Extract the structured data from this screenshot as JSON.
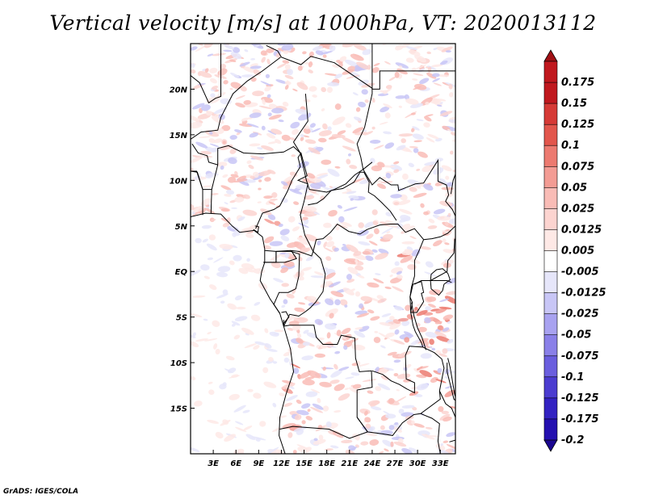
{
  "title": "Vertical velocity [m/s] at 1000hPa, VT: 2020013112",
  "footer": "GrADS: IGES/COLA",
  "map": {
    "lon_range": [
      0,
      35
    ],
    "lat_range": [
      -20,
      25
    ],
    "lon_ticks": [
      {
        "value": 3,
        "label": "3E"
      },
      {
        "value": 6,
        "label": "6E"
      },
      {
        "value": 9,
        "label": "9E"
      },
      {
        "value": 12,
        "label": "12E"
      },
      {
        "value": 15,
        "label": "15E"
      },
      {
        "value": 18,
        "label": "18E"
      },
      {
        "value": 21,
        "label": "21E"
      },
      {
        "value": 24,
        "label": "24E"
      },
      {
        "value": 27,
        "label": "27E"
      },
      {
        "value": 30,
        "label": "30E"
      },
      {
        "value": 33,
        "label": "33E"
      }
    ],
    "lat_ticks": [
      {
        "value": 20,
        "label": "20N"
      },
      {
        "value": 15,
        "label": "15N"
      },
      {
        "value": 10,
        "label": "10N"
      },
      {
        "value": 5,
        "label": "5N"
      },
      {
        "value": 0,
        "label": "EQ"
      },
      {
        "value": -5,
        "label": "5S"
      },
      {
        "value": -10,
        "label": "10S"
      },
      {
        "value": -15,
        "label": "15S"
      }
    ]
  },
  "colorbar": {
    "levels": [
      {
        "label": "0.175",
        "color": "#c0181e"
      },
      {
        "label": "0.15",
        "color": "#c0181e"
      },
      {
        "label": "0.125",
        "color": "#d63a36"
      },
      {
        "label": "0.1",
        "color": "#e2564c"
      },
      {
        "label": "0.075",
        "color": "#ec7a70"
      },
      {
        "label": "0.05",
        "color": "#f39c94"
      },
      {
        "label": "0.025",
        "color": "#f9bcb6"
      },
      {
        "label": "0.0125",
        "color": "#fcd4d0"
      },
      {
        "label": "0.005",
        "color": "#fee9e6"
      },
      {
        "label": "-0.005",
        "color": "#ffffff"
      },
      {
        "label": "-0.0125",
        "color": "#e6e6fa"
      },
      {
        "label": "-0.025",
        "color": "#c8c6f6"
      },
      {
        "label": "-0.05",
        "color": "#a8a2f0"
      },
      {
        "label": "-0.075",
        "color": "#8a80e8"
      },
      {
        "label": "-0.1",
        "color": "#6a5ede"
      },
      {
        "label": "-0.125",
        "color": "#4b3cd0"
      },
      {
        "label": "-0.175",
        "color": "#3322c2"
      },
      {
        "label": "-0.2",
        "color": "#2410b0"
      }
    ],
    "top_arrow_color": "#a01014",
    "bottom_arrow_color": "#1a0690"
  }
}
